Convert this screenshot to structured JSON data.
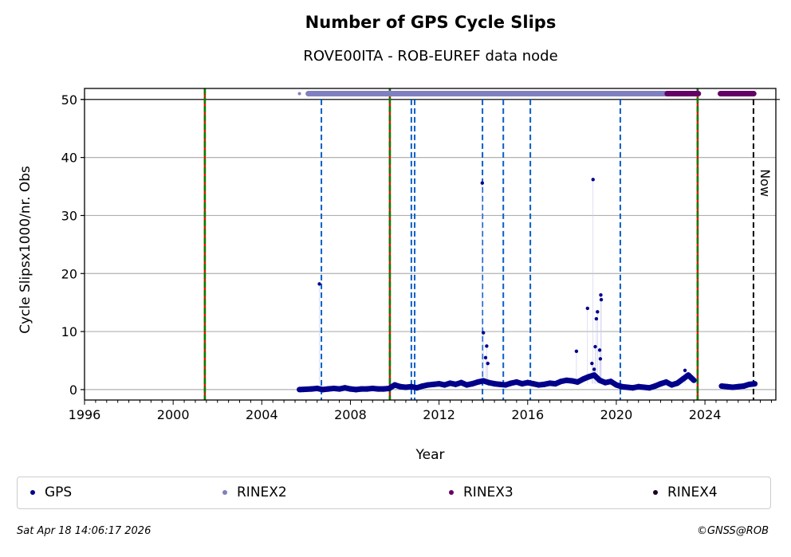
{
  "chart_data": {
    "type": "scatter",
    "title": "Number of GPS Cycle Slips",
    "subtitle": "ROVE00ITA - ROB-EUREF data node",
    "xlabel": "Year",
    "ylabel": "Cycle Slipsx1000/nr. Obs",
    "xlim": [
      1996,
      2027.2
    ],
    "ylim": [
      -1.8,
      51.9
    ],
    "xticks": [
      1996,
      2000,
      2004,
      2008,
      2012,
      2016,
      2020,
      2024
    ],
    "yticks": [
      0,
      10,
      20,
      30,
      40,
      50
    ],
    "grid": "horizontal",
    "legend_position": "bottom",
    "series": [
      {
        "name": "GPS",
        "color": "#00008b",
        "x": [
          2005.7,
          2006.25,
          2006.5,
          2006.75,
          2007.0,
          2007.25,
          2007.5,
          2007.75,
          2008.0,
          2008.25,
          2008.5,
          2008.75,
          2009.0,
          2009.25,
          2009.5,
          2009.75,
          2010.0,
          2010.25,
          2010.5,
          2010.75,
          2011.0,
          2011.25,
          2011.5,
          2011.75,
          2012.0,
          2012.25,
          2012.5,
          2012.75,
          2013.0,
          2013.25,
          2013.5,
          2013.75,
          2014.0,
          2014.25,
          2014.5,
          2014.75,
          2015.0,
          2015.25,
          2015.5,
          2015.75,
          2016.0,
          2016.25,
          2016.5,
          2016.75,
          2017.0,
          2017.25,
          2017.5,
          2017.75,
          2018.0,
          2018.25,
          2018.5,
          2018.75,
          2019.0,
          2019.25,
          2019.5,
          2019.75,
          2020.0,
          2020.25,
          2020.5,
          2020.75,
          2021.0,
          2021.25,
          2021.5,
          2021.75,
          2022.0,
          2022.25,
          2022.5,
          2022.75,
          2023.0,
          2023.25,
          2023.5,
          2024.75,
          2025.0,
          2025.25,
          2025.5,
          2025.75,
          2026.0,
          2026.25,
          2006.6,
          2013.95,
          2014.0,
          2014.15,
          2014.1,
          2014.2,
          2018.2,
          2018.7,
          2018.95,
          2019.1,
          2019.15,
          2019.05,
          2019.3,
          2019.32,
          2019.25,
          2019.28,
          2018.9,
          2019.0,
          2023.1
        ],
        "y": [
          0,
          0.1,
          0.2,
          0,
          0.1,
          0.2,
          0.1,
          0.3,
          0.1,
          0,
          0.1,
          0.1,
          0.2,
          0.1,
          0.1,
          0.2,
          0.8,
          0.5,
          0.4,
          0.5,
          0.3,
          0.6,
          0.8,
          0.9,
          1.0,
          0.8,
          1.1,
          0.9,
          1.2,
          0.8,
          1.0,
          1.3,
          1.5,
          1.2,
          1.0,
          0.9,
          0.8,
          1.1,
          1.3,
          1.0,
          1.2,
          1.0,
          0.8,
          0.9,
          1.1,
          1.0,
          1.4,
          1.6,
          1.5,
          1.3,
          1.8,
          2.2,
          2.5,
          1.6,
          1.2,
          1.4,
          0.8,
          0.5,
          0.4,
          0.3,
          0.5,
          0.4,
          0.3,
          0.6,
          1.0,
          1.3,
          0.8,
          1.1,
          1.8,
          2.5,
          1.6,
          0.6,
          0.5,
          0.4,
          0.5,
          0.6,
          0.9,
          1.0,
          18.2,
          35.6,
          9.8,
          7.5,
          5.5,
          4.5,
          6.6,
          14.0,
          36.2,
          12.2,
          13.4,
          7.4,
          16.3,
          15.5,
          6.8,
          5.3,
          4.5,
          3.5,
          3.3
        ]
      },
      {
        "name": "RINEX2",
        "color": "#8080c0",
        "value": 51,
        "points": [
          2005.7
        ],
        "ranges": [
          [
            2006.1,
            2022.3
          ]
        ]
      },
      {
        "name": "RINEX3",
        "color": "#660066",
        "value": 51,
        "points": [],
        "ranges": [
          [
            2022.3,
            2023.7
          ],
          [
            2024.7,
            2026.2
          ]
        ]
      },
      {
        "name": "RINEX4",
        "color": "#1a0020",
        "value": 51,
        "points": [],
        "ranges": []
      }
    ],
    "event_lines": {
      "equipment_change": {
        "colors": [
          "#008000",
          "#ff0000"
        ],
        "x": [
          2001.43,
          2009.78,
          2023.67
        ]
      },
      "blue_dashed": {
        "color": "#0a5fc8",
        "x": [
          2006.69,
          2010.75,
          2010.9,
          2013.96,
          2014.9,
          2016.12,
          2020.18
        ]
      },
      "now": {
        "label": "Now",
        "x": 2026.19
      }
    }
  },
  "footer": {
    "timestamp": "Sat Apr 18 14:06:17 2026",
    "credit": "©GNSS@ROB"
  }
}
